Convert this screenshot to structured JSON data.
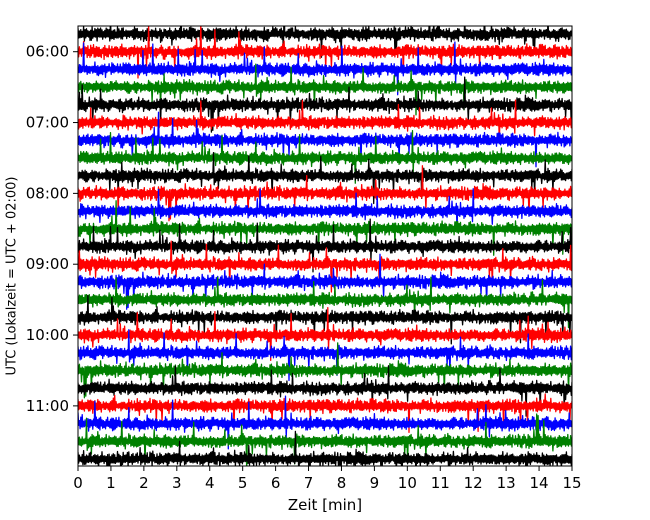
{
  "chart_data": {
    "type": "line",
    "title": "",
    "xlabel": "Zeit  [min]",
    "ylabel": "UTC (Lokalzeit = UTC + 02:00)",
    "xlim": [
      0,
      15
    ],
    "x_ticks": [
      "0",
      "1",
      "2",
      "3",
      "4",
      "5",
      "6",
      "7",
      "8",
      "9",
      "10",
      "11",
      "12",
      "13",
      "14",
      "15"
    ],
    "y_ticks": [
      "06:00",
      "07:00",
      "08:00",
      "09:00",
      "10:00",
      "11:00"
    ],
    "line_interval_min": 15,
    "first_line": "05:45",
    "last_line": "11:45",
    "color_cycle": [
      "#000000",
      "#ff0000",
      "#0000ff",
      "#008000"
    ],
    "legend": "none",
    "grid": false
  }
}
